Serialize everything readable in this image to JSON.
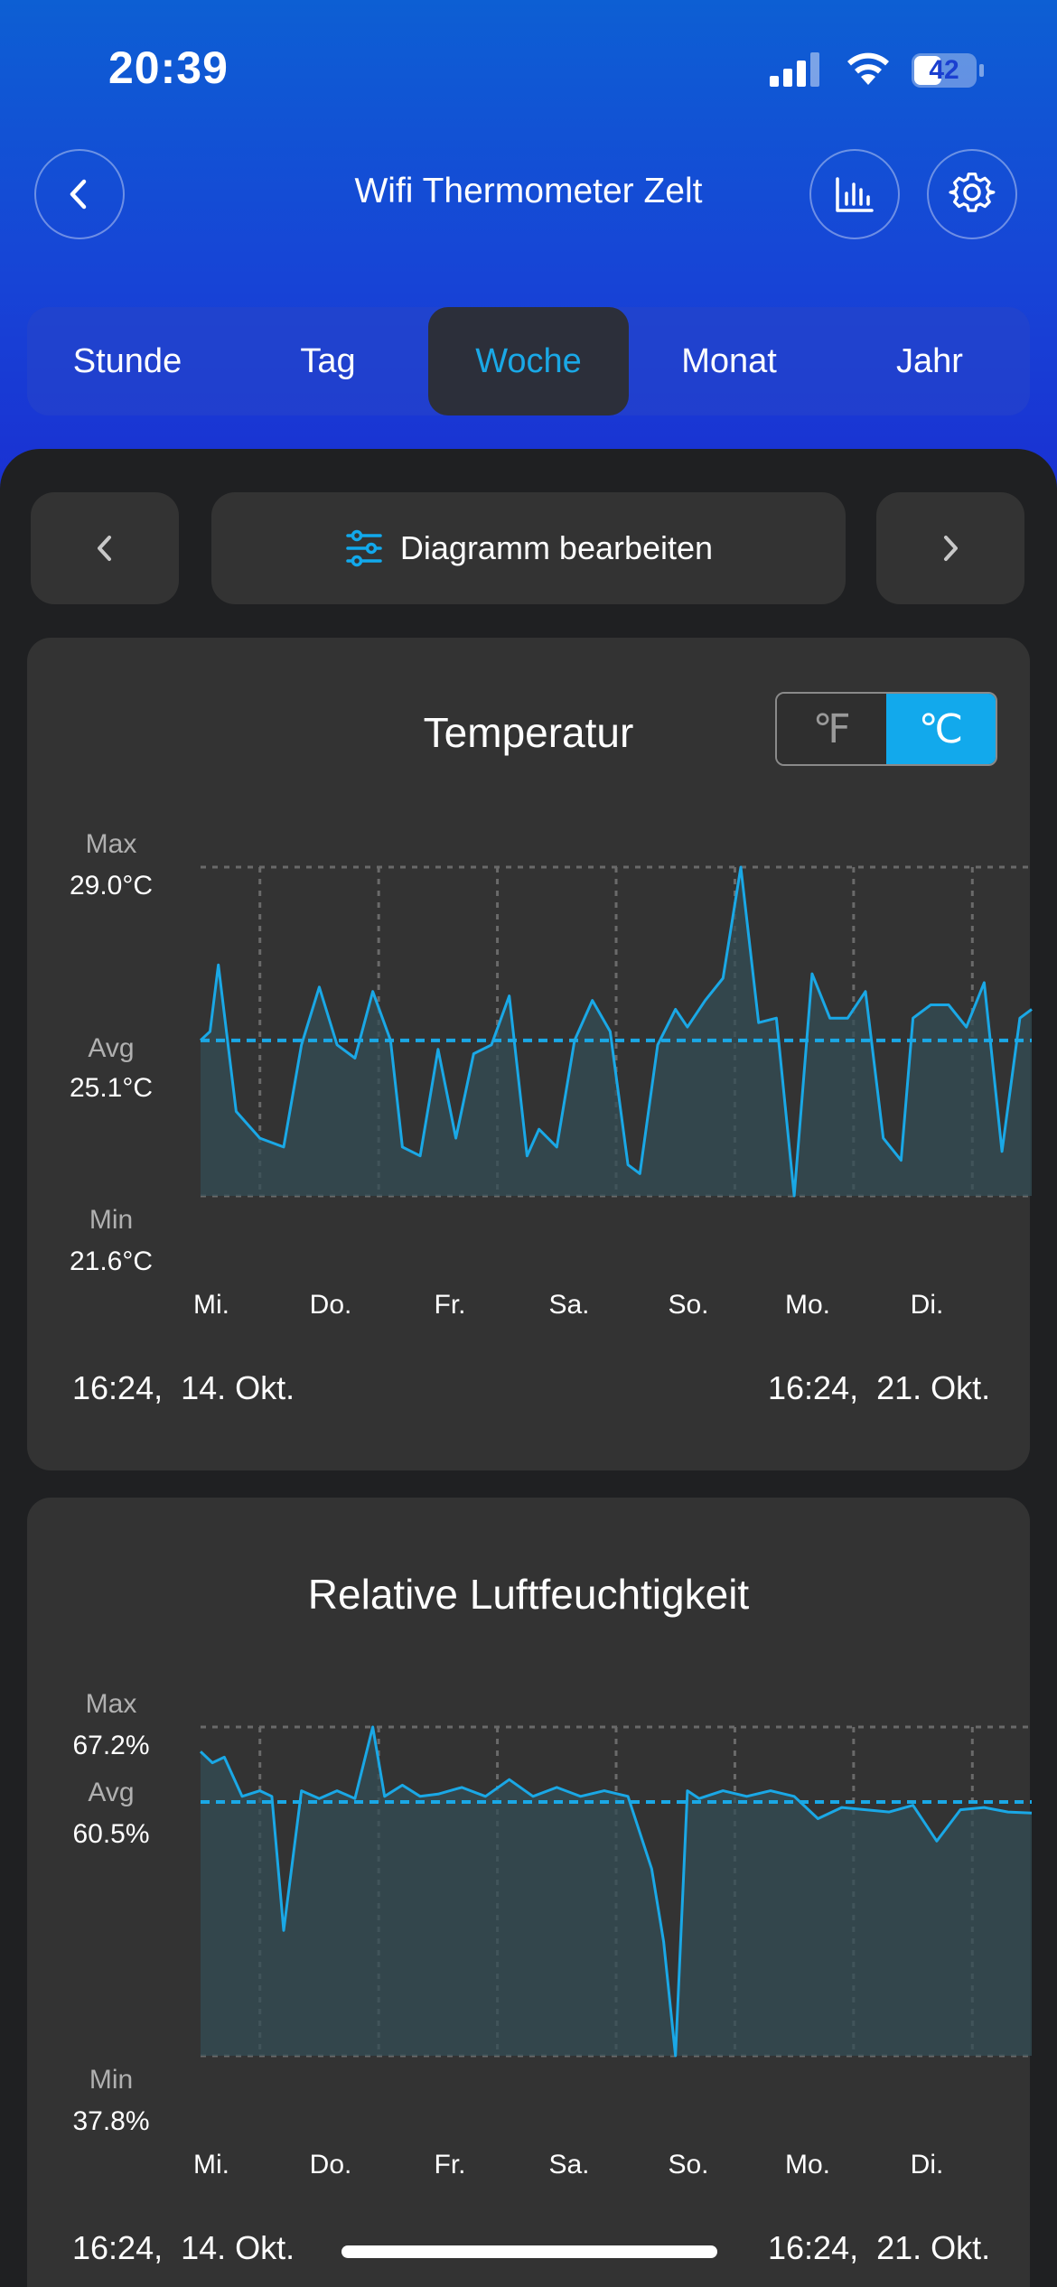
{
  "status_bar": {
    "time": "20:39",
    "battery": "42"
  },
  "header": {
    "title": "Wifi Thermometer Zelt"
  },
  "tabs": [
    {
      "label": "Stunde",
      "active": false
    },
    {
      "label": "Tag",
      "active": false
    },
    {
      "label": "Woche",
      "active": true
    },
    {
      "label": "Monat",
      "active": false
    },
    {
      "label": "Jahr",
      "active": false
    }
  ],
  "controls": {
    "edit_label": "Diagramm bearbeiten"
  },
  "temperature": {
    "title": "Temperatur",
    "unit_f": "℉",
    "unit_c": "℃",
    "active_unit": "C",
    "max_label": "Max",
    "max_value": "29.0°C",
    "avg_label": "Avg",
    "avg_value": "25.1°C",
    "min_label": "Min",
    "min_value": "21.6°C",
    "days": [
      "Mi.",
      "Do.",
      "Fr.",
      "Sa.",
      "So.",
      "Mo.",
      "Di."
    ],
    "start_time": "16:24,",
    "start_date": "14. Okt.",
    "end_time": "16:24,",
    "end_date": "21. Okt."
  },
  "humidity": {
    "title": "Relative Luftfeuchtigkeit",
    "max_label": "Max",
    "max_value": "67.2%",
    "avg_label": "Avg",
    "avg_value": "60.5%",
    "min_label": "Min",
    "min_value": "37.8%",
    "days": [
      "Mi.",
      "Do.",
      "Fr.",
      "Sa.",
      "So.",
      "Mo.",
      "Di."
    ],
    "start_time": "16:24,",
    "start_date": "14. Okt.",
    "end_time": "16:24,",
    "end_date": "21. Okt."
  },
  "colors": {
    "accent": "#12a9ec",
    "line": "#1aa8e6",
    "card": "#333333",
    "background": "#1f2022"
  },
  "chart_data": [
    {
      "type": "area",
      "title": "Temperatur",
      "ylabel": "°C",
      "ylim": [
        21.6,
        29.0
      ],
      "avg": 25.1,
      "categories": [
        "Mi.",
        "Do.",
        "Fr.",
        "Sa.",
        "So.",
        "Mo.",
        "Di."
      ],
      "x": [
        0.0,
        0.08,
        0.15,
        0.3,
        0.5,
        0.7,
        0.85,
        1.0,
        1.15,
        1.3,
        1.45,
        1.6,
        1.7,
        1.85,
        2.0,
        2.15,
        2.3,
        2.45,
        2.6,
        2.75,
        2.85,
        3.0,
        3.15,
        3.3,
        3.45,
        3.6,
        3.7,
        3.85,
        4.0,
        4.1,
        4.25,
        4.4,
        4.55,
        4.7,
        4.85,
        5.0,
        5.15,
        5.3,
        5.45,
        5.6,
        5.75,
        5.9,
        6.0,
        6.15,
        6.3,
        6.45,
        6.6,
        6.75,
        6.9,
        7.0
      ],
      "series": [
        {
          "values": [
            25.1,
            25.3,
            26.8,
            23.5,
            22.9,
            22.7,
            25.0,
            26.3,
            25.0,
            24.7,
            26.2,
            25.1,
            22.7,
            22.5,
            24.9,
            22.9,
            24.8,
            25.0,
            26.1,
            22.5,
            23.1,
            22.7,
            25.1,
            26.0,
            25.3,
            22.3,
            22.1,
            25.0,
            25.8,
            25.4,
            26.0,
            26.5,
            29.0,
            25.5,
            25.6,
            21.6,
            26.6,
            25.6,
            25.6,
            26.2,
            22.9,
            22.4,
            25.6,
            25.9,
            25.9,
            25.4,
            26.4,
            22.6,
            25.6,
            25.8
          ]
        }
      ]
    },
    {
      "type": "area",
      "title": "Relative Luftfeuchtigkeit",
      "ylabel": "%",
      "ylim": [
        37.8,
        67.2
      ],
      "avg": 60.5,
      "categories": [
        "Mi.",
        "Do.",
        "Fr.",
        "Sa.",
        "So.",
        "Mo.",
        "Di."
      ],
      "x": [
        0.0,
        0.1,
        0.2,
        0.35,
        0.5,
        0.6,
        0.7,
        0.85,
        1.0,
        1.15,
        1.3,
        1.45,
        1.55,
        1.7,
        1.85,
        2.0,
        2.2,
        2.4,
        2.6,
        2.8,
        3.0,
        3.2,
        3.4,
        3.6,
        3.8,
        3.9,
        4.0,
        4.1,
        4.2,
        4.4,
        4.6,
        4.8,
        5.0,
        5.2,
        5.4,
        5.6,
        5.8,
        6.0,
        6.2,
        6.4,
        6.6,
        6.8,
        7.0
      ],
      "series": [
        {
          "values": [
            65.0,
            64.0,
            64.5,
            61.0,
            61.5,
            61.0,
            49.0,
            61.5,
            60.8,
            61.5,
            60.8,
            67.2,
            61.0,
            62.0,
            61.0,
            61.2,
            61.8,
            61.0,
            62.5,
            61.0,
            61.8,
            61.0,
            61.5,
            61.0,
            54.5,
            48.0,
            37.8,
            61.5,
            60.8,
            61.5,
            61.0,
            61.5,
            61.0,
            59.0,
            60.0,
            59.8,
            59.6,
            60.2,
            57.0,
            59.8,
            60.0,
            59.6,
            59.5
          ]
        }
      ]
    }
  ]
}
